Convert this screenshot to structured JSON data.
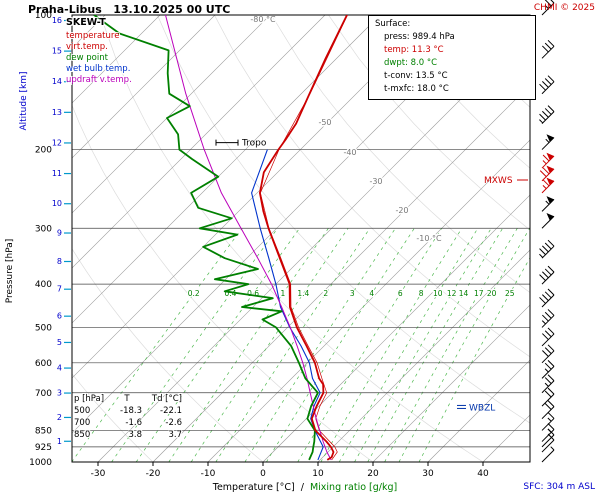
{
  "title": "Praha-Libus   13.10.2025 00 UTC",
  "copyright": "CHMI © 2025",
  "legend": {
    "title": "SKEW-T",
    "items": [
      {
        "label": "temperature",
        "color": "#cc0000"
      },
      {
        "label": "virt.temp.",
        "color": "#cc0000"
      },
      {
        "label": "dew point",
        "color": "#008000"
      },
      {
        "label": "wet bulb temp.",
        "color": "#0033cc"
      },
      {
        "label": "updraft v.temp.",
        "color": "#bb00bb"
      }
    ]
  },
  "surface_box": {
    "title": "Surface:",
    "lines": [
      {
        "text": "press: 989.4 hPa",
        "color": "#000000"
      },
      {
        "text": "temp: 11.3 °C",
        "color": "#cc0000"
      },
      {
        "text": "dwpt: 8.0 °C",
        "color": "#008000"
      },
      {
        "text": "t-conv: 13.5 °C",
        "color": "#000000"
      },
      {
        "text": "t-mxfc: 18.0 °C",
        "color": "#000000"
      }
    ]
  },
  "axis_titles": {
    "pressure": "Pressure [hPa]",
    "altitude": "Altitude [km]",
    "temperature": "Temperature [°C]",
    "separator": "/",
    "mixing": "Mixing ratio [g/kg]",
    "mixing_color": "#008000"
  },
  "markers": {
    "tropo": "Tropo",
    "mxws": "MXWS",
    "wbzl": "WBZL",
    "sfc": "SFC: 304 m ASL"
  },
  "levels_table": {
    "columns": [
      "p [hPa]",
      "T",
      "Td [°C]"
    ],
    "rows": [
      [
        "500",
        "-18.3",
        "-22.1"
      ],
      [
        "700",
        "-1.6",
        "-2.6"
      ],
      [
        "850",
        "3.8",
        "3.7"
      ]
    ]
  },
  "chart_data": {
    "type": "line",
    "diagram": "skew-t-log-p",
    "station": "Praha-Libus",
    "valid": "13.10.2025 00 UTC",
    "axis_ranges": {
      "p_top_hPa": 100,
      "p_bottom_hPa": 1000,
      "temp_ticks_C": [
        -30,
        -20,
        -10,
        0,
        10,
        20,
        30,
        40
      ],
      "skew_deg": 45
    },
    "pressure_ticks": [
      100,
      200,
      300,
      400,
      500,
      600,
      700,
      850,
      925,
      1000
    ],
    "altitude_ticks_km": [
      1,
      2,
      3,
      4,
      5,
      6,
      7,
      8,
      9,
      10,
      11,
      12,
      13,
      14,
      15,
      16
    ],
    "isotherm_labels": [
      {
        "t": -80,
        "y": 22,
        "text": "-80 °C"
      },
      {
        "t": -50,
        "y": 125,
        "text": "-50"
      },
      {
        "t": -40,
        "y": 155,
        "text": "-40"
      },
      {
        "t": -30,
        "y": 184,
        "text": "-30"
      },
      {
        "t": -20,
        "y": 213,
        "text": "-20"
      },
      {
        "t": -10,
        "y": 241,
        "text": "-10 °C"
      }
    ],
    "mixing_ratios": [
      0.2,
      0.4,
      0.6,
      1,
      1.4,
      2,
      3,
      4,
      6,
      8,
      10,
      12,
      14,
      17,
      20,
      25
    ],
    "surface": {
      "press_hPa": 989.4,
      "temp_C": 11.3,
      "dwpt_C": 8.0,
      "t_conv_C": 13.5,
      "t_mxfc_C": 18.0
    },
    "tropopause_hPa": 193,
    "wbzl_hPa": 755,
    "series": {
      "temperature": {
        "color": "#cc0000",
        "width": 1.8,
        "points": [
          [
            989,
            11.3
          ],
          [
            975,
            11.6
          ],
          [
            950,
            11.0
          ],
          [
            925,
            9.6
          ],
          [
            900,
            7.8
          ],
          [
            850,
            3.8
          ],
          [
            800,
            1.0
          ],
          [
            750,
            -0.4
          ],
          [
            700,
            -1.6
          ],
          [
            670,
            -3.2
          ],
          [
            650,
            -5.0
          ],
          [
            600,
            -8.6
          ],
          [
            550,
            -13.2
          ],
          [
            500,
            -18.3
          ],
          [
            450,
            -23.3
          ],
          [
            400,
            -27.5
          ],
          [
            350,
            -34.0
          ],
          [
            300,
            -41.5
          ],
          [
            275,
            -45.5
          ],
          [
            250,
            -49.5
          ],
          [
            225,
            -52.5
          ],
          [
            200,
            -54.0
          ],
          [
            190,
            -54.5
          ],
          [
            175,
            -55.5
          ],
          [
            150,
            -58.5
          ],
          [
            125,
            -62.0
          ],
          [
            100,
            -66.0
          ]
        ]
      },
      "virt_temp": {
        "color": "#cc0000",
        "width": 0.7,
        "points": [
          [
            989,
            12.1
          ],
          [
            950,
            11.7
          ],
          [
            925,
            10.3
          ],
          [
            850,
            4.5
          ],
          [
            800,
            1.7
          ],
          [
            750,
            0.2
          ],
          [
            700,
            -1.0
          ],
          [
            650,
            -4.5
          ],
          [
            600,
            -8.2
          ],
          [
            550,
            -12.9
          ],
          [
            500,
            -18.0
          ],
          [
            450,
            -23.1
          ],
          [
            400,
            -27.3
          ],
          [
            350,
            -33.8
          ],
          [
            300,
            -41.4
          ],
          [
            250,
            -49.4
          ],
          [
            200,
            -53.9
          ],
          [
            150,
            -58.4
          ],
          [
            100,
            -65.9
          ]
        ]
      },
      "dew_point": {
        "color": "#008000",
        "width": 1.8,
        "points": [
          [
            989,
            8.0
          ],
          [
            950,
            7.2
          ],
          [
            925,
            6.4
          ],
          [
            900,
            5.6
          ],
          [
            850,
            3.7
          ],
          [
            800,
            0.2
          ],
          [
            750,
            -1.4
          ],
          [
            700,
            -2.6
          ],
          [
            650,
            -7.5
          ],
          [
            600,
            -11.5
          ],
          [
            550,
            -16.0
          ],
          [
            500,
            -22.1
          ],
          [
            480,
            -26.0
          ],
          [
            460,
            -24.0
          ],
          [
            450,
            -32.0
          ],
          [
            430,
            -28.0
          ],
          [
            415,
            -38.0
          ],
          [
            400,
            -35.0
          ],
          [
            390,
            -42.0
          ],
          [
            370,
            -36.0
          ],
          [
            350,
            -44.0
          ],
          [
            330,
            -50.0
          ],
          [
            310,
            -46.0
          ],
          [
            300,
            -54.0
          ],
          [
            285,
            -50.0
          ],
          [
            270,
            -58.0
          ],
          [
            250,
            -62.0
          ],
          [
            230,
            -60.0
          ],
          [
            210,
            -68.0
          ],
          [
            200,
            -72.0
          ],
          [
            185,
            -75.0
          ],
          [
            170,
            -80.0
          ],
          [
            160,
            -78.0
          ],
          [
            150,
            -84.0
          ],
          [
            135,
            -88.0
          ],
          [
            120,
            -92.0
          ],
          [
            110,
            -104.0
          ],
          [
            100,
            -112.0
          ]
        ]
      },
      "wet_bulb": {
        "color": "#0033cc",
        "width": 1.1,
        "points": [
          [
            989,
            9.6
          ],
          [
            925,
            8.2
          ],
          [
            850,
            3.7
          ],
          [
            800,
            0.8
          ],
          [
            750,
            -0.9
          ],
          [
            700,
            -2.2
          ],
          [
            650,
            -6.2
          ],
          [
            600,
            -9.6
          ],
          [
            550,
            -14.2
          ],
          [
            500,
            -19.6
          ],
          [
            450,
            -25.0
          ],
          [
            400,
            -30.0
          ],
          [
            350,
            -36.0
          ],
          [
            300,
            -43.0
          ],
          [
            250,
            -51.0
          ],
          [
            200,
            -56.0
          ]
        ]
      },
      "updraft_virt_temp": {
        "color": "#bb00bb",
        "width": 1.0,
        "points": [
          [
            989,
            12.0
          ],
          [
            950,
            9.8
          ],
          [
            900,
            7.2
          ],
          [
            850,
            4.6
          ],
          [
            800,
            1.8
          ],
          [
            750,
            -1.0
          ],
          [
            700,
            -4.0
          ],
          [
            650,
            -7.2
          ],
          [
            600,
            -10.8
          ],
          [
            550,
            -14.9
          ],
          [
            500,
            -19.5
          ],
          [
            450,
            -24.8
          ],
          [
            400,
            -30.8
          ],
          [
            350,
            -38.0
          ],
          [
            300,
            -46.5
          ],
          [
            250,
            -56.5
          ],
          [
            200,
            -67.5
          ],
          [
            150,
            -81.0
          ],
          [
            100,
            -99.0
          ]
        ]
      }
    },
    "wind_barbs": {
      "x": 542,
      "default_color": "#000000",
      "mxws_color": "#cc0000",
      "levels": [
        {
          "p": 1000,
          "kt": 5
        },
        {
          "p": 950,
          "kt": 10
        },
        {
          "p": 925,
          "kt": 10
        },
        {
          "p": 900,
          "kt": 15
        },
        {
          "p": 850,
          "kt": 15
        },
        {
          "p": 800,
          "kt": 20
        },
        {
          "p": 750,
          "kt": 20
        },
        {
          "p": 700,
          "kt": 25
        },
        {
          "p": 650,
          "kt": 25
        },
        {
          "p": 600,
          "kt": 30
        },
        {
          "p": 550,
          "kt": 30
        },
        {
          "p": 500,
          "kt": 35
        },
        {
          "p": 450,
          "kt": 40
        },
        {
          "p": 400,
          "kt": 40
        },
        {
          "p": 350,
          "kt": 45
        },
        {
          "p": 300,
          "kt": 50
        },
        {
          "p": 275,
          "kt": 55
        },
        {
          "p": 250,
          "kt": 65,
          "mxws": true
        },
        {
          "p": 235,
          "kt": 70,
          "mxws": true
        },
        {
          "p": 220,
          "kt": 65,
          "mxws": true
        },
        {
          "p": 200,
          "kt": 55
        },
        {
          "p": 175,
          "kt": 45
        },
        {
          "p": 150,
          "kt": 40
        },
        {
          "p": 125,
          "kt": 30
        },
        {
          "p": 100,
          "kt": 25
        }
      ]
    }
  }
}
